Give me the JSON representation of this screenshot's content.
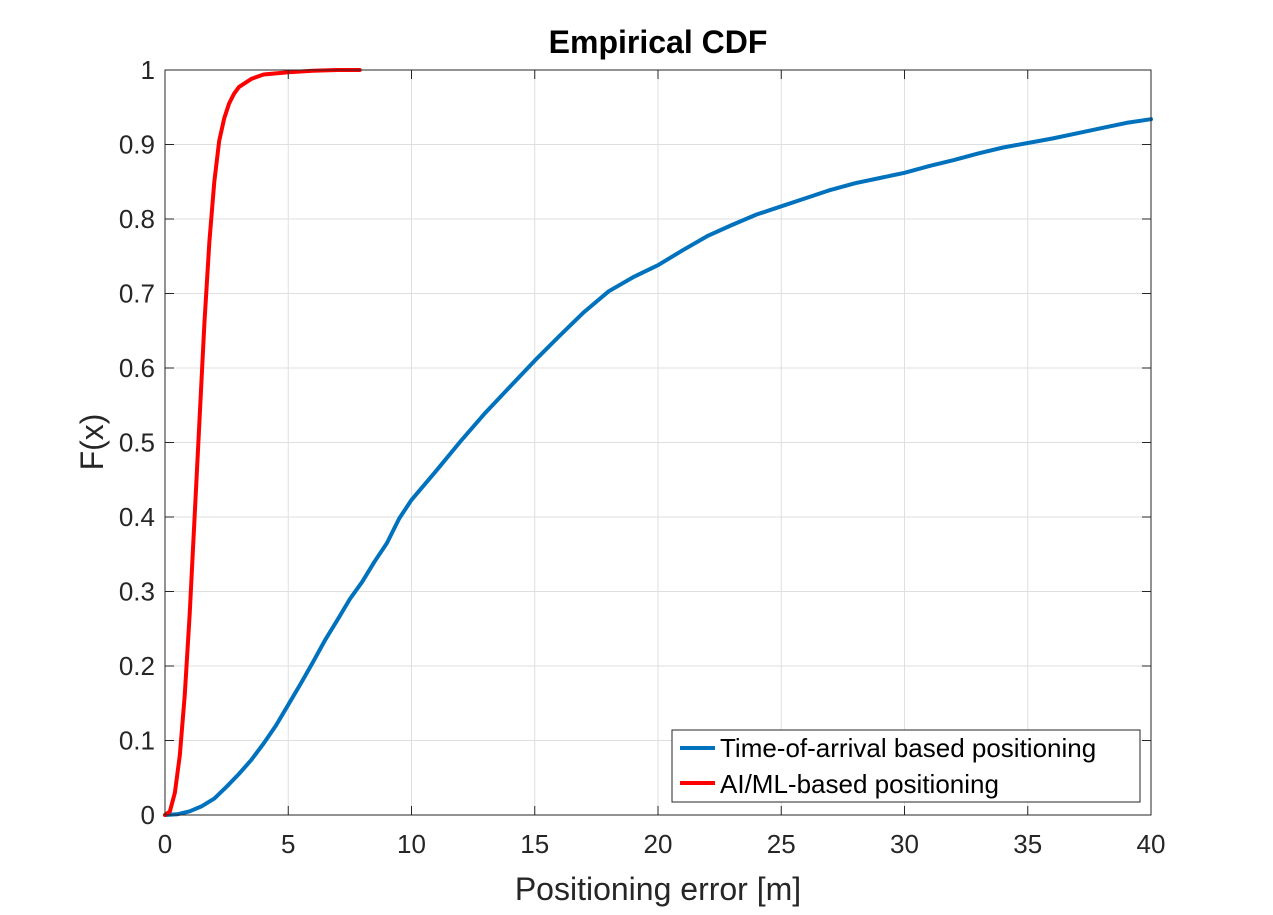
{
  "chart_data": {
    "type": "line",
    "title": "Empirical CDF",
    "xlabel": "Positioning error [m]",
    "ylabel": "F(x)",
    "xlim": [
      0,
      40
    ],
    "ylim": [
      0,
      1
    ],
    "xticks": [
      0,
      5,
      10,
      15,
      20,
      25,
      30,
      35,
      40
    ],
    "xtick_labels": [
      "0",
      "5",
      "10",
      "15",
      "20",
      "25",
      "30",
      "35",
      "40"
    ],
    "yticks": [
      0,
      0.1,
      0.2,
      0.3,
      0.4,
      0.5,
      0.6,
      0.7,
      0.8,
      0.9,
      1
    ],
    "ytick_labels": [
      "0",
      "0.1",
      "0.2",
      "0.3",
      "0.4",
      "0.5",
      "0.6",
      "0.7",
      "0.8",
      "0.9",
      "1"
    ],
    "grid": true,
    "legend_position": "bottom-right",
    "series": [
      {
        "name": "Time-of-arrival based positioning",
        "color": "#0072BD",
        "points": [
          [
            0,
            0
          ],
          [
            0.5,
            0.001
          ],
          [
            1,
            0.005
          ],
          [
            1.5,
            0.012
          ],
          [
            2,
            0.022
          ],
          [
            2.5,
            0.038
          ],
          [
            3,
            0.055
          ],
          [
            3.5,
            0.074
          ],
          [
            4,
            0.096
          ],
          [
            4.5,
            0.12
          ],
          [
            5,
            0.148
          ],
          [
            5.5,
            0.176
          ],
          [
            6,
            0.205
          ],
          [
            6.5,
            0.235
          ],
          [
            7,
            0.262
          ],
          [
            7.5,
            0.29
          ],
          [
            8,
            0.313
          ],
          [
            8.5,
            0.34
          ],
          [
            9,
            0.365
          ],
          [
            9.5,
            0.398
          ],
          [
            10,
            0.423
          ],
          [
            11,
            0.462
          ],
          [
            12,
            0.502
          ],
          [
            13,
            0.54
          ],
          [
            14,
            0.575
          ],
          [
            15,
            0.61
          ],
          [
            16,
            0.643
          ],
          [
            17,
            0.675
          ],
          [
            18,
            0.703
          ],
          [
            19,
            0.722
          ],
          [
            20,
            0.738
          ],
          [
            21,
            0.758
          ],
          [
            22,
            0.777
          ],
          [
            23,
            0.792
          ],
          [
            24,
            0.806
          ],
          [
            25,
            0.817
          ],
          [
            26,
            0.828
          ],
          [
            27,
            0.839
          ],
          [
            28,
            0.848
          ],
          [
            29,
            0.855
          ],
          [
            30,
            0.862
          ],
          [
            31,
            0.871
          ],
          [
            32,
            0.879
          ],
          [
            33,
            0.888
          ],
          [
            34,
            0.896
          ],
          [
            35,
            0.902
          ],
          [
            36,
            0.908
          ],
          [
            37,
            0.915
          ],
          [
            38,
            0.922
          ],
          [
            39,
            0.929
          ],
          [
            40,
            0.934
          ]
        ]
      },
      {
        "name": "AI/ML-based positioning",
        "color": "#FF0000",
        "points": [
          [
            0,
            0
          ],
          [
            0.2,
            0.005
          ],
          [
            0.4,
            0.03
          ],
          [
            0.6,
            0.08
          ],
          [
            0.8,
            0.16
          ],
          [
            1,
            0.27
          ],
          [
            1.2,
            0.4
          ],
          [
            1.4,
            0.53
          ],
          [
            1.6,
            0.66
          ],
          [
            1.8,
            0.77
          ],
          [
            2,
            0.85
          ],
          [
            2.2,
            0.905
          ],
          [
            2.4,
            0.935
          ],
          [
            2.6,
            0.955
          ],
          [
            2.8,
            0.968
          ],
          [
            3,
            0.977
          ],
          [
            3.5,
            0.988
          ],
          [
            4,
            0.994
          ],
          [
            5,
            0.997
          ],
          [
            6,
            0.999
          ],
          [
            7,
            1.0
          ],
          [
            7.9,
            1.0
          ]
        ]
      }
    ]
  }
}
